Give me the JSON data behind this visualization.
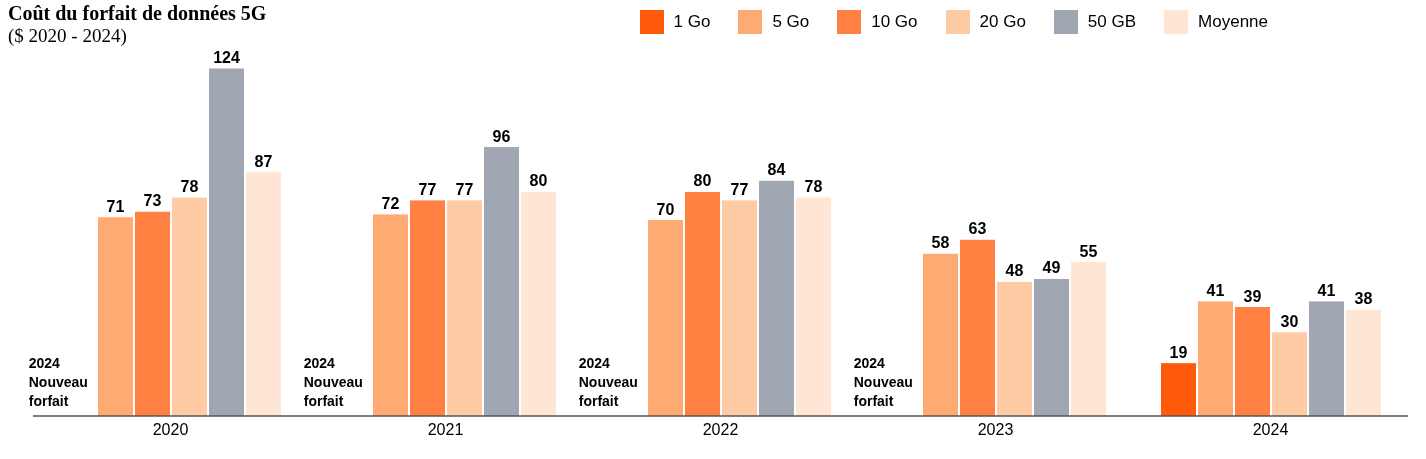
{
  "chart_data": {
    "type": "bar",
    "title": "Coût du forfait de données 5G",
    "subtitle": "($ 2020 - 2024)",
    "categories": [
      "2020",
      "2021",
      "2022",
      "2023",
      "2024"
    ],
    "series": [
      {
        "name": "1 Go",
        "color": "#ff5a0a",
        "values": [
          null,
          null,
          null,
          null,
          19
        ]
      },
      {
        "name": "5 Go",
        "color": "#ffaa73",
        "values": [
          71,
          72,
          70,
          58,
          41
        ]
      },
      {
        "name": "10 Go",
        "color": "#ff8040",
        "values": [
          73,
          77,
          80,
          63,
          39
        ]
      },
      {
        "name": "20 Go",
        "color": "#ffcba4",
        "values": [
          78,
          77,
          77,
          48,
          30
        ]
      },
      {
        "name": "50 GB",
        "color": "#a0a6b2",
        "values": [
          124,
          96,
          84,
          49,
          41
        ]
      },
      {
        "name": "Moyenne",
        "color": "#ffe6d4",
        "values": [
          87,
          80,
          78,
          55,
          38
        ]
      }
    ],
    "data_labels": true,
    "legend": "top right",
    "grid": false,
    "annotations": [
      "2024 Nouveau forfait",
      "2024 Nouveau forfait",
      "2024 Nouveau forfait",
      "2024 Nouveau forfait"
    ]
  }
}
